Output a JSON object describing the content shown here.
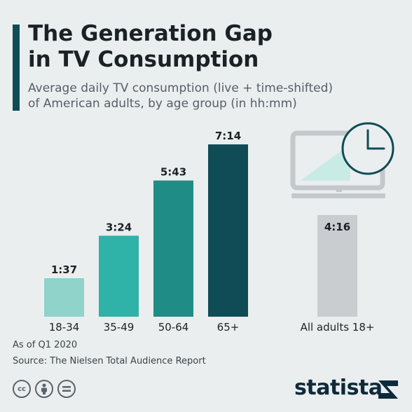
{
  "header": {
    "title_line1": "The Generation Gap",
    "title_line2": "in TV Consumption",
    "subtitle_line1": "Average daily TV consumption (live + time-shifted)",
    "subtitle_line2": "of American adults, by age group (in hh:mm)"
  },
  "chart_data": {
    "type": "bar",
    "categories": [
      "18-34",
      "35-49",
      "50-64",
      "65+",
      "All adults 18+"
    ],
    "values": [
      1.617,
      3.4,
      5.717,
      7.233,
      4.267
    ],
    "labels": [
      "1:37",
      "3:24",
      "5:43",
      "7:14",
      "4:16"
    ],
    "unit": "hh:mm",
    "colors": [
      "#8fd3cb",
      "#2fb2a7",
      "#1f8d85",
      "#0f4c55",
      "#c9cdcf"
    ],
    "title": "The Generation Gap in TV Consumption",
    "subtitle": "Average daily TV consumption (live + time-shifted) of American adults, by age group (in hh:mm)",
    "xlabel": "",
    "ylabel": "",
    "grid": false
  },
  "footer": {
    "note": "As of Q1 2020",
    "source": "Source: The Nielsen Total Audience Report",
    "brand": "statista",
    "icons": [
      "creative-commons-icon",
      "attribution-icon",
      "no-derivatives-icon"
    ]
  }
}
